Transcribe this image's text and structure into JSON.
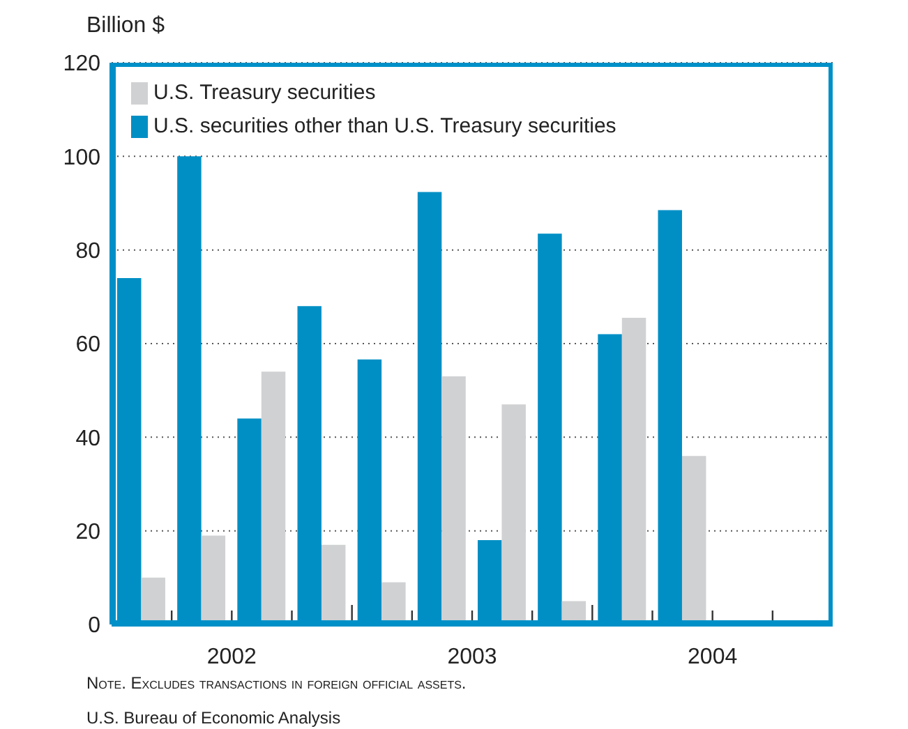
{
  "chart_data": {
    "type": "bar",
    "ylabel": "Billion $",
    "x": [
      2002.125,
      2002.375,
      2002.625,
      2002.875,
      2003.125,
      2003.375,
      2003.625,
      2003.875,
      2004.125,
      2004.375
    ],
    "series": [
      {
        "name": "U.S. Treasury securities",
        "color": "#d0d1d3",
        "values": [
          10,
          19,
          54,
          17,
          9,
          53,
          47,
          5,
          65.5,
          36
        ]
      },
      {
        "name": "U.S. securities other than U.S. Treasury securities",
        "color": "#008fc5",
        "values": [
          74,
          100,
          44,
          68,
          56.6,
          92.4,
          18,
          83.5,
          62,
          88.5
        ]
      }
    ],
    "xlim": [
      2002,
      2005
    ],
    "xticks": [
      {
        "value": 2002.25,
        "label": null
      },
      {
        "value": 2002.5,
        "label": "2002"
      },
      {
        "value": 2002.75,
        "label": null
      },
      {
        "value": 2003,
        "label": null
      },
      {
        "value": 2003.25,
        "label": null
      },
      {
        "value": 2003.5,
        "label": "2003"
      },
      {
        "value": 2003.75,
        "label": null
      },
      {
        "value": 2004,
        "label": null
      },
      {
        "value": 2004.25,
        "label": null
      },
      {
        "value": 2004.5,
        "label": "2004"
      },
      {
        "value": 2004.75,
        "label": null
      }
    ],
    "ylim": [
      0,
      120
    ],
    "yticks": [
      0,
      20,
      40,
      60,
      80,
      100,
      120
    ],
    "grid": "y",
    "legend": "top left",
    "annotations": [
      "Note. Excludes transactions in foreign official assets.",
      "U.S. Bureau of Economic Analysis"
    ]
  }
}
